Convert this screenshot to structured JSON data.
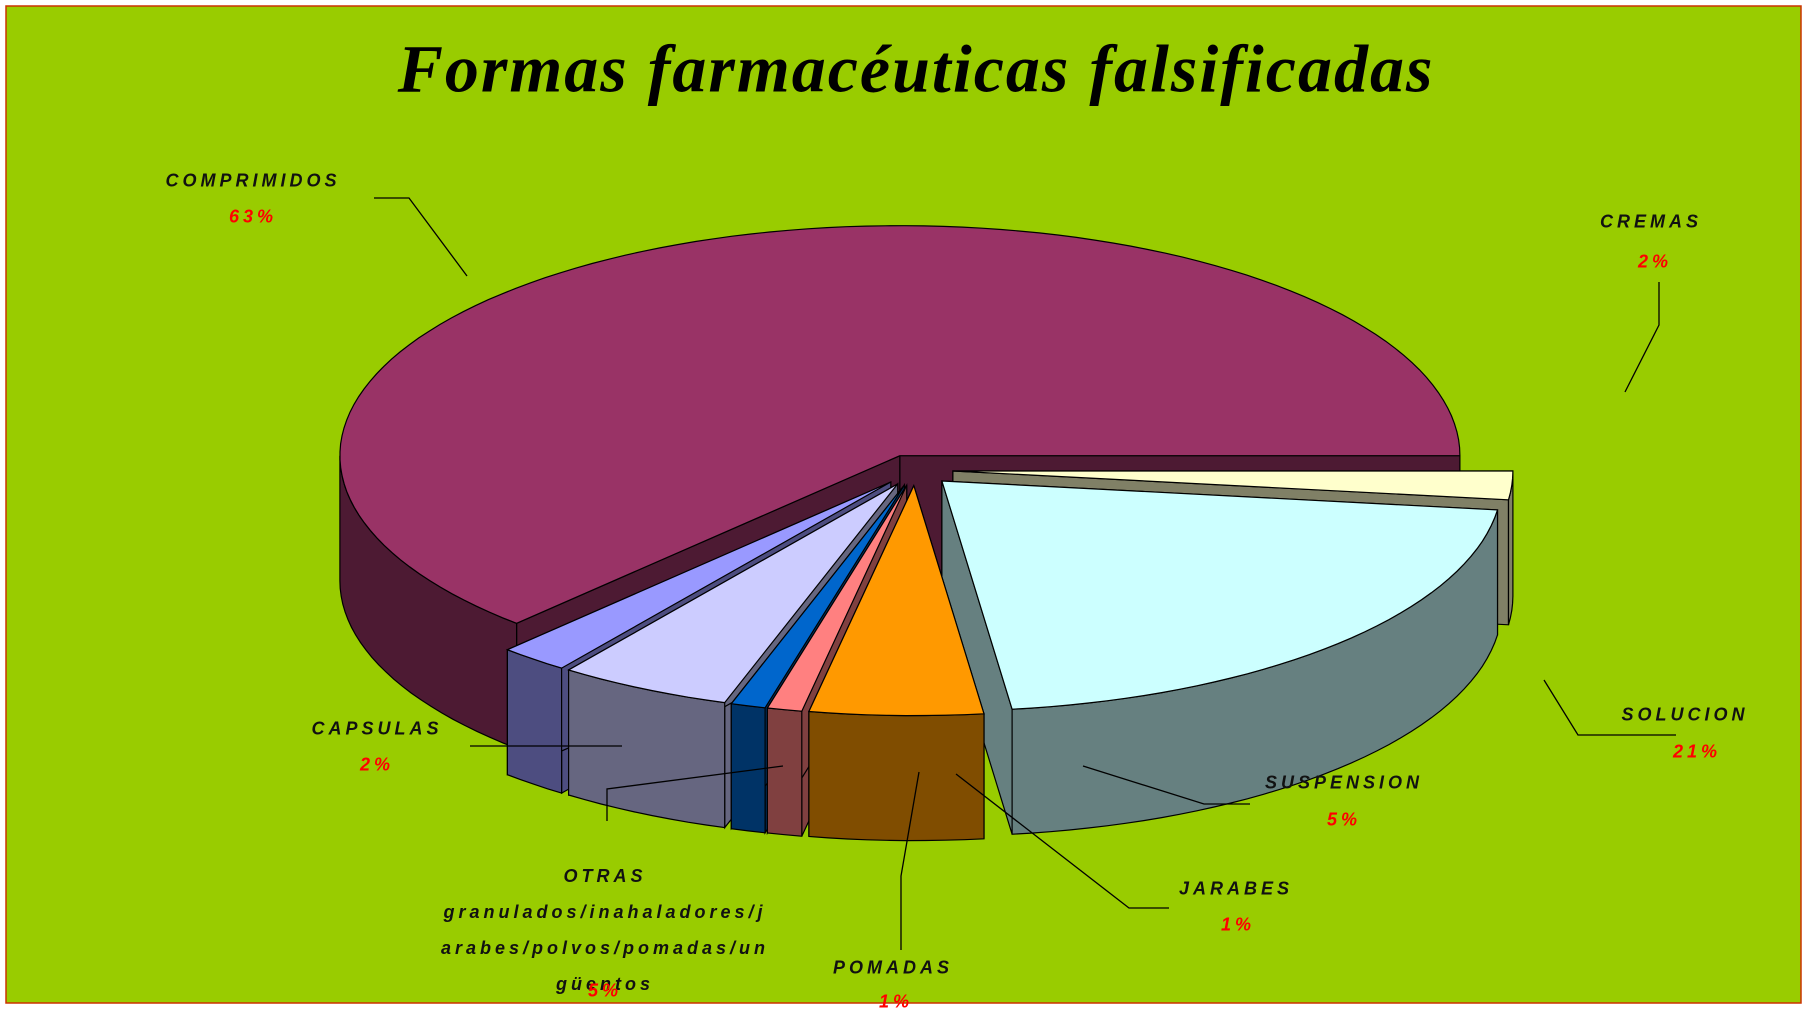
{
  "chart_data": {
    "type": "pie3d",
    "title": "Formas farmacéuticas falsificadas",
    "categories": [
      "CREMAS",
      "SOLUCION",
      "SUSPENSION",
      "JARABES",
      "POMADAS",
      "OTRAS\ngranulados/inahaladores/jarabes/polvos/pomadas/ungüentos",
      "CAPSULAS",
      "COMPRIMIDOS"
    ],
    "values": [
      2,
      21,
      5,
      1,
      1,
      5,
      2,
      63
    ],
    "value_labels": [
      "2%",
      "21%",
      "5%",
      "1%",
      "1%",
      "5%",
      "2%",
      "63%"
    ],
    "colors": [
      "#ffffcc",
      "#ccffff",
      "#ff9900",
      "#ff8080",
      "#0066cc",
      "#ccccff",
      "#9999ff",
      "#993366"
    ]
  }
}
